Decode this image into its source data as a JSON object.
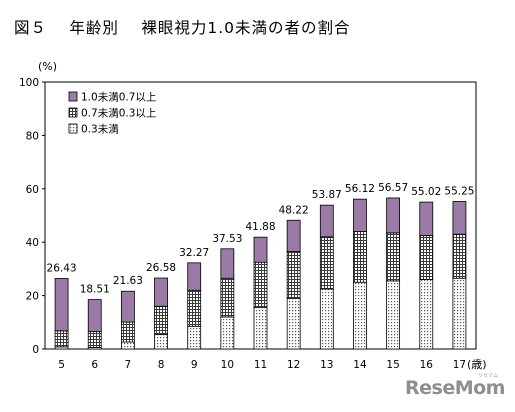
{
  "figure_title": "図５　 年齢別　 裸眼視力1.0未満の者の割合",
  "watermark": "ReseMom",
  "watermark_sub": "リセマム",
  "chart_data": {
    "type": "bar",
    "stacked": true,
    "categories": [
      "5",
      "6",
      "7",
      "8",
      "9",
      "10",
      "11",
      "12",
      "13",
      "14",
      "15",
      "16",
      "17"
    ],
    "x_unit": "(歳)",
    "y_unit": "(%)",
    "ylim": [
      0,
      100
    ],
    "yticks": [
      0,
      20,
      40,
      60,
      80,
      100
    ],
    "grid": false,
    "legend_position": "top-left",
    "series": [
      {
        "name": "0.3未満",
        "pattern": "dots",
        "values": [
          0.8,
          0.6,
          2.6,
          5.5,
          8.5,
          12,
          15.5,
          19,
          22.5,
          25,
          25.5,
          26,
          26.5
        ]
      },
      {
        "name": "0.7未満0.3以上",
        "pattern": "grid",
        "values": [
          6,
          6,
          7.5,
          10.5,
          13.5,
          14.5,
          17,
          17.5,
          19.5,
          19,
          18,
          16.5,
          16.5
        ]
      },
      {
        "name": "1.0未満0.7以上",
        "color": "#9c7aa6",
        "values": [
          19.63,
          11.91,
          11.53,
          10.58,
          10.27,
          11.03,
          9.38,
          11.72,
          11.87,
          12.12,
          13.07,
          12.52,
          12.25
        ]
      }
    ],
    "totals": [
      26.43,
      18.51,
      21.63,
      26.58,
      32.27,
      37.53,
      41.88,
      48.22,
      53.87,
      56.12,
      56.57,
      55.02,
      55.25
    ],
    "total_labels": [
      "26.43",
      "18.51",
      "21.63",
      "26.58",
      "32.27",
      "37.53",
      "41.88",
      "48.22",
      "53.87",
      "56.12",
      "56.57",
      "55.02",
      "55.25"
    ]
  }
}
